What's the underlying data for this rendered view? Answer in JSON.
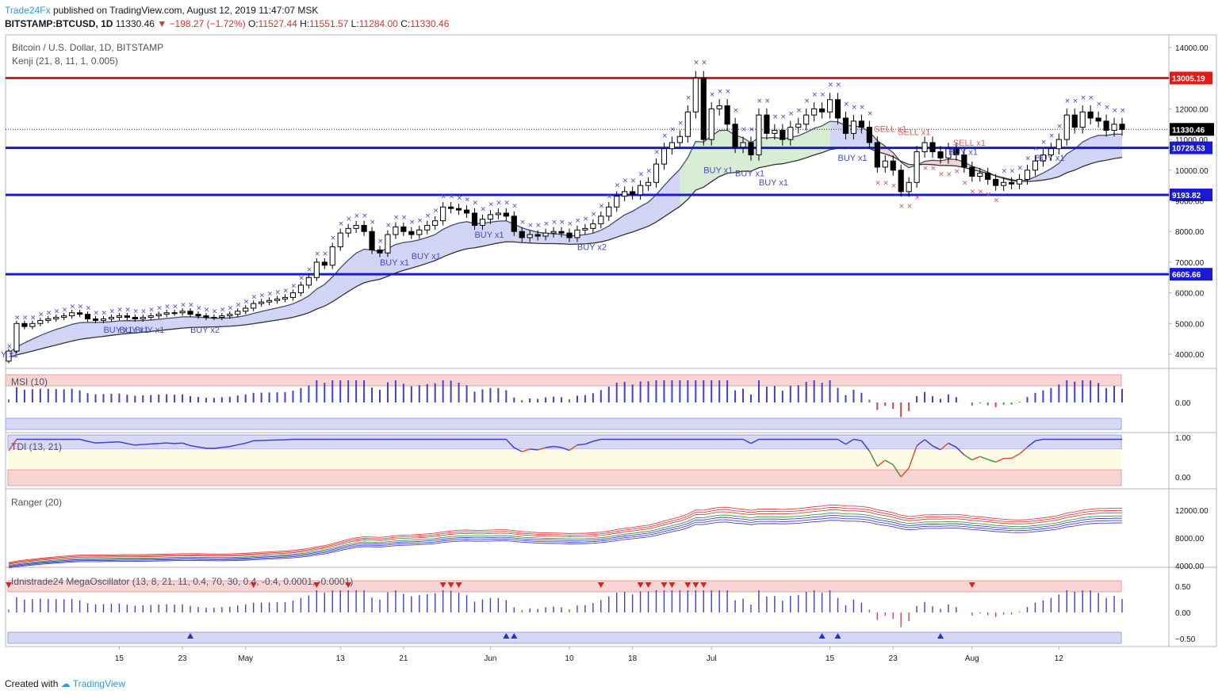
{
  "header": {
    "publisher": "Trade24Fx",
    "published_text": "published on TradingView.com, August 12, 2019 11:47:07 MSK",
    "symbol": "BITSTAMP:BTCUSD, 1D",
    "last": "11330.46",
    "change": "−198.27 (−1.72%)",
    "o_label": "O:",
    "o": "11527.44",
    "h_label": "H:",
    "h": "11551.57",
    "l_label": "L:",
    "l": "11284.00",
    "c_label": "C:",
    "c": "11330.46"
  },
  "colors": {
    "up": "#ffffff",
    "down": "#000000",
    "red_line": "#e61919",
    "blue_line": "#1a1ad6",
    "cloud_up": "#c9cdf2",
    "cloud_green": "#cfeacc",
    "cloud_red": "#f3cccc",
    "accent": "#2a9be0"
  },
  "footer": {
    "created_with": "Created with",
    "brand": "TradingView"
  },
  "chart_data": [
    {
      "type": "candlestick",
      "title": "Bitcoin / U.S. Dollar, 1D, BITSTAMP",
      "indicator_label": "Kenji (21, 8, 11, 1, 0.005)",
      "y_ticks": [
        "14000.00",
        "12000.00",
        "11000.00",
        "10000.00",
        "9000.00",
        "8000.00",
        "7000.00",
        "6000.00",
        "5000.00",
        "4000.00"
      ],
      "ylim": [
        3600,
        14300
      ],
      "x_ticks": [
        "15",
        "23",
        "May",
        "13",
        "21",
        "Jun",
        "10",
        "18",
        "Jul",
        "15",
        "23",
        "Aug",
        "12"
      ],
      "x_tick_day_index": [
        14,
        22,
        30,
        42,
        50,
        61,
        71,
        79,
        89,
        104,
        112,
        122,
        133
      ],
      "horizontal_levels": [
        {
          "value": 13005.19,
          "label": "13005.19",
          "color": "red"
        },
        {
          "value": 10728.53,
          "label": "10728.53",
          "color": "blue"
        },
        {
          "value": 9193.82,
          "label": "9193.82",
          "color": "blue"
        },
        {
          "value": 6605.66,
          "label": "6605.66",
          "color": "blue"
        }
      ],
      "last_price": {
        "value": 11330.46,
        "label": "11330.46"
      },
      "closes": [
        4100,
        5000,
        4900,
        5000,
        5100,
        5150,
        5200,
        5250,
        5350,
        5300,
        5150,
        5100,
        5150,
        5200,
        5250,
        5200,
        5150,
        5200,
        5250,
        5300,
        5350,
        5350,
        5400,
        5300,
        5250,
        5200,
        5200,
        5250,
        5300,
        5400,
        5500,
        5650,
        5700,
        5750,
        5800,
        5850,
        6000,
        6250,
        6500,
        7000,
        6900,
        7500,
        7950,
        8100,
        8200,
        8000,
        7400,
        7300,
        7900,
        8150,
        8000,
        7900,
        8050,
        8200,
        8350,
        8800,
        8750,
        8700,
        8600,
        8200,
        8400,
        8550,
        8600,
        8500,
        8000,
        7800,
        7900,
        7850,
        7950,
        8000,
        7950,
        7800,
        8050,
        8100,
        8250,
        8500,
        8800,
        9150,
        9300,
        9200,
        9500,
        9600,
        10200,
        10700,
        10900,
        11100,
        11900,
        13000,
        11000,
        12000,
        12100,
        11500,
        10750,
        10900,
        10500,
        11800,
        11200,
        11300,
        11000,
        11400,
        11500,
        11800,
        12000,
        11900,
        12300,
        11700,
        11200,
        11600,
        11400,
        10900,
        10100,
        10300,
        10000,
        9300,
        9600,
        10600,
        10900,
        10600,
        10400,
        10700,
        10500,
        10100,
        9800,
        9900,
        9700,
        9500,
        9600,
        9550,
        9700,
        10000,
        10300,
        10500,
        10700,
        11000,
        11800,
        11400,
        11900,
        11700,
        11600,
        11300,
        11500,
        11330
      ]
    },
    {
      "type": "histogram",
      "title": "MSI (10)",
      "y_ticks": [
        "0.00"
      ]
    },
    {
      "type": "line",
      "title": "TDI (13, 21)",
      "y_ticks": [
        "1.00",
        "0.00"
      ]
    },
    {
      "type": "line",
      "title": "Ranger (20)",
      "y_ticks": [
        "12000.00",
        "8000.00",
        "4000.00"
      ]
    },
    {
      "type": "histogram",
      "title": "Idnistrade24 MegaOscillator (13, 8, 21, 11, 0.4, 70, 30, 0.4, -0.4, 0.0001, -0.0001)",
      "y_ticks": [
        "0.50",
        "0.00",
        "−0.50"
      ]
    }
  ],
  "signals": {
    "buy": [
      {
        "text": "Y x1"
      },
      {
        "text": "BUY x1"
      },
      {
        "text": "BUY x1"
      },
      {
        "text": "BUY x1"
      },
      {
        "text": "BUY x2"
      },
      {
        "text": "BUY x1"
      },
      {
        "text": "BUY x1"
      },
      {
        "text": "BUY x1"
      },
      {
        "text": "BUY x2"
      },
      {
        "text": "BUY x1"
      },
      {
        "text": "BUY x1"
      },
      {
        "text": "BUY x1"
      },
      {
        "text": "BUY x1"
      },
      {
        "text": "BUY x1"
      },
      {
        "text": "BUY x1"
      }
    ],
    "sell": [
      {
        "text": "SELL x1"
      },
      {
        "text": "SELL x1"
      },
      {
        "text": "SELL x1"
      }
    ]
  }
}
